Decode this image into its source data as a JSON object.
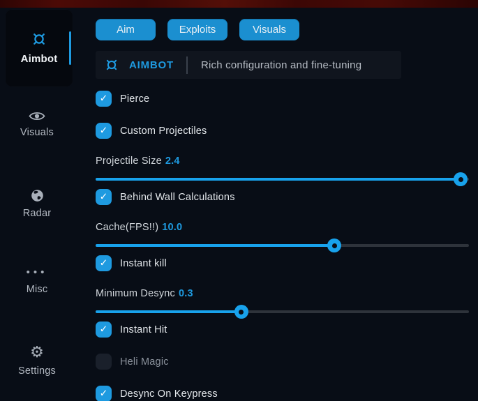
{
  "colors": {
    "accent": "#1e9ae0",
    "slider_blue": "#18a2ec",
    "tab_blue": "#1b8fd0",
    "background": "#080d16"
  },
  "sidebar": {
    "items": [
      {
        "label": "Aimbot",
        "icon": "crosshair-icon",
        "active": true
      },
      {
        "label": "Visuals",
        "icon": "eye-icon",
        "active": false
      },
      {
        "label": "Radar",
        "icon": "globe-icon",
        "active": false
      },
      {
        "label": "Misc",
        "icon": "ellipsis-icon",
        "active": false
      },
      {
        "label": "Settings",
        "icon": "gear-icon",
        "active": false
      }
    ]
  },
  "tabs": [
    {
      "label": "Aim"
    },
    {
      "label": "Exploits"
    },
    {
      "label": "Visuals"
    }
  ],
  "header": {
    "icon": "crosshair-icon",
    "title": "AIMBOT",
    "subtitle": "Rich configuration and fine-tuning"
  },
  "controls": [
    {
      "type": "checkbox",
      "label": "Pierce",
      "checked": true
    },
    {
      "type": "checkbox",
      "label": "Custom Projectiles",
      "checked": true
    },
    {
      "type": "slider",
      "label": "Projectile Size",
      "value": "2.4",
      "percent": 97.8
    },
    {
      "type": "checkbox",
      "label": "Behind Wall Calculations",
      "checked": true
    },
    {
      "type": "slider",
      "label": "Cache(FPS!!)",
      "value": "10.0",
      "percent": 64
    },
    {
      "type": "checkbox",
      "label": "Instant kill",
      "checked": true
    },
    {
      "type": "slider",
      "label": "Minimum Desync",
      "value": "0.3",
      "percent": 39
    },
    {
      "type": "checkbox",
      "label": "Instant Hit",
      "checked": true
    },
    {
      "type": "checkbox",
      "label": "Heli Magic",
      "checked": false
    },
    {
      "type": "checkbox",
      "label": "Desync On Keypress",
      "checked": true
    }
  ]
}
